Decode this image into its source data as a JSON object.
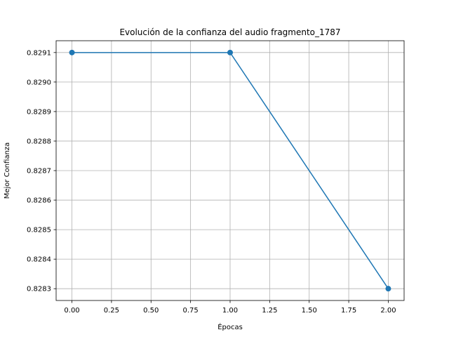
{
  "chart_data": {
    "type": "line",
    "title": "Evolución de la confianza del audio fragmento_1787",
    "xlabel": "Épocas",
    "ylabel": "Mejor Confianza",
    "xlim": [
      -0.1,
      2.1
    ],
    "ylim": [
      0.82826,
      0.82914
    ],
    "x_ticks": [
      0.0,
      0.25,
      0.5,
      0.75,
      1.0,
      1.25,
      1.5,
      1.75,
      2.0
    ],
    "x_tick_labels": [
      "0.00",
      "0.25",
      "0.50",
      "0.75",
      "1.00",
      "1.25",
      "1.50",
      "1.75",
      "2.00"
    ],
    "y_ticks": [
      0.8283,
      0.8284,
      0.8285,
      0.8286,
      0.8287,
      0.8288,
      0.8289,
      0.829,
      0.8291
    ],
    "y_tick_labels": [
      "0.8283",
      "0.8284",
      "0.8285",
      "0.8286",
      "0.8287",
      "0.8288",
      "0.8289",
      "0.8290",
      "0.8291"
    ],
    "grid": true,
    "series": [
      {
        "x": [
          0,
          1,
          2
        ],
        "values": [
          0.8291,
          0.8291,
          0.8283
        ],
        "color": "#1f77b4",
        "marker": "circle"
      }
    ]
  }
}
